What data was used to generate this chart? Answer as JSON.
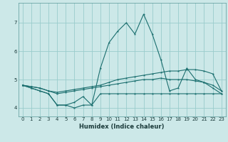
{
  "xlabel": "Humidex (Indice chaleur)",
  "background_color": "#cce8e8",
  "grid_color": "#99cccc",
  "line_color": "#1a6e6e",
  "xlim": [
    -0.5,
    23.5
  ],
  "ylim": [
    3.7,
    7.7
  ],
  "yticks": [
    4,
    5,
    6,
    7
  ],
  "xticks": [
    0,
    1,
    2,
    3,
    4,
    5,
    6,
    7,
    8,
    9,
    10,
    11,
    12,
    13,
    14,
    15,
    16,
    17,
    18,
    19,
    20,
    21,
    22,
    23
  ],
  "lines": [
    {
      "x": [
        0,
        1,
        2,
        3,
        4,
        5,
        6,
        7,
        8,
        9,
        10,
        11,
        12,
        13,
        14,
        15,
        16,
        17,
        18,
        19,
        20,
        21,
        22,
        23
      ],
      "y": [
        4.8,
        4.7,
        4.6,
        4.5,
        4.1,
        4.1,
        4.0,
        4.1,
        4.1,
        4.5,
        4.5,
        4.5,
        4.5,
        4.5,
        4.5,
        4.5,
        4.5,
        4.5,
        4.5,
        4.5,
        4.5,
        4.5,
        4.5,
        4.5
      ]
    },
    {
      "x": [
        0,
        1,
        2,
        3,
        4,
        5,
        6,
        7,
        8,
        9,
        10,
        11,
        12,
        13,
        14,
        15,
        16,
        17,
        18,
        19,
        20,
        21,
        22,
        23
      ],
      "y": [
        4.8,
        4.7,
        4.6,
        4.5,
        4.1,
        4.1,
        4.2,
        4.4,
        4.1,
        5.4,
        6.3,
        6.7,
        7.0,
        6.6,
        7.3,
        6.6,
        5.7,
        4.6,
        4.7,
        5.4,
        5.0,
        4.9,
        4.7,
        4.5
      ]
    },
    {
      "x": [
        0,
        1,
        2,
        3,
        4,
        5,
        6,
        7,
        8,
        9,
        10,
        11,
        12,
        13,
        14,
        15,
        16,
        17,
        18,
        19,
        20,
        21,
        22,
        23
      ],
      "y": [
        4.8,
        4.75,
        4.7,
        4.6,
        4.55,
        4.6,
        4.65,
        4.7,
        4.75,
        4.8,
        4.9,
        5.0,
        5.05,
        5.1,
        5.15,
        5.2,
        5.25,
        5.3,
        5.3,
        5.35,
        5.35,
        5.3,
        5.2,
        4.6
      ]
    },
    {
      "x": [
        0,
        1,
        2,
        3,
        4,
        5,
        6,
        7,
        8,
        9,
        10,
        11,
        12,
        13,
        14,
        15,
        16,
        17,
        18,
        19,
        20,
        21,
        22,
        23
      ],
      "y": [
        4.8,
        4.75,
        4.7,
        4.6,
        4.5,
        4.55,
        4.6,
        4.65,
        4.7,
        4.75,
        4.8,
        4.85,
        4.9,
        4.95,
        5.0,
        5.0,
        5.05,
        5.0,
        5.0,
        5.0,
        4.95,
        4.9,
        4.8,
        4.6
      ]
    }
  ]
}
